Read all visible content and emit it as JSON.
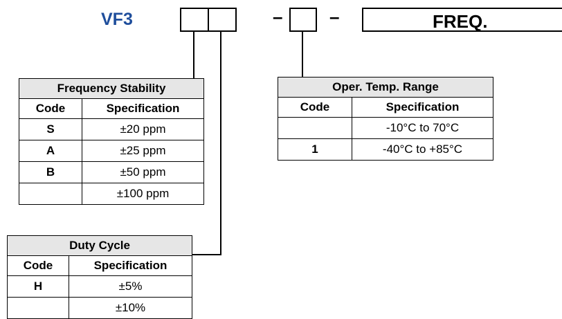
{
  "part_number": {
    "prefix": "VF3",
    "separator_1": "–",
    "separator_2": "–",
    "freq_label": "FREQ."
  },
  "freq_stability": {
    "title": "Frequency Stability",
    "col_code": "Code",
    "col_spec": "Specification",
    "rows": [
      {
        "code": "S",
        "spec": "±20 ppm"
      },
      {
        "code": "A",
        "spec": "±25 ppm"
      },
      {
        "code": "B",
        "spec": "±50 ppm"
      },
      {
        "code": "",
        "spec": "±100 ppm"
      }
    ]
  },
  "duty_cycle": {
    "title": "Duty Cycle",
    "col_code": "Code",
    "col_spec": "Specification",
    "rows": [
      {
        "code": "H",
        "spec": "±5%"
      },
      {
        "code": "",
        "spec": "±10%"
      }
    ]
  },
  "temp_range": {
    "title": "Oper. Temp. Range",
    "col_code": "Code",
    "col_spec": "Specification",
    "rows": [
      {
        "code": "",
        "spec": "-10°C to 70°C"
      },
      {
        "code": "1",
        "spec": "-40°C to +85°C"
      }
    ]
  }
}
